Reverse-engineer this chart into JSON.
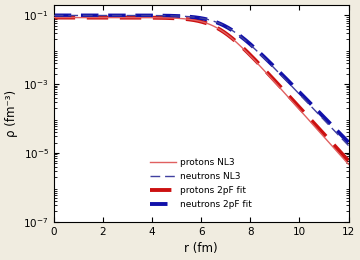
{
  "xlabel": "r (fm)",
  "ylabel": "ρ (fm⁻³)",
  "xlim": [
    0,
    12
  ],
  "ymin": 1e-07,
  "ymax": 0.2,
  "bg_color": "#ffffff",
  "outer_bg": "#f0ece0",
  "proton_NL3": {
    "rho0": 0.0855,
    "R": 6.65,
    "a": 0.545,
    "color": "#e06060",
    "lw": 1.0,
    "label": "protons NL3"
  },
  "neutron_NL3": {
    "rho0": 0.0985,
    "R": 6.95,
    "a": 0.58,
    "color": "#4040a0",
    "lw": 1.0,
    "label": "neutrons NL3",
    "dashes": [
      7,
      3.5
    ]
  },
  "proton_2pF": {
    "rho0": 0.0855,
    "R": 6.65,
    "a": 0.558,
    "color": "#cc1111",
    "lw": 2.8,
    "label": "protons 2pF fit",
    "dashes": [
      5.5,
      3.0
    ]
  },
  "neutron_2pF": {
    "rho0": 0.0985,
    "R": 6.95,
    "a": 0.595,
    "color": "#1111aa",
    "lw": 2.8,
    "label": "neutrons 2pF fit",
    "dashes": [
      4.5,
      2.5
    ]
  },
  "yticks": [
    1e-07,
    1e-05,
    0.001,
    0.1
  ],
  "ytick_labels": [
    "10$^{-7}$",
    "10$^{-5}$",
    "10$^{-3}$",
    "10$^{-1}$"
  ],
  "xticks": [
    0,
    2,
    4,
    6,
    8,
    10,
    12
  ]
}
